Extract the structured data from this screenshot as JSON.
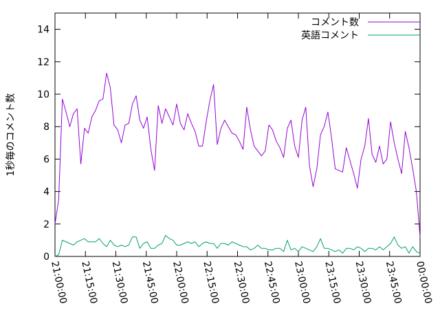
{
  "chart_data": {
    "type": "line",
    "title": "",
    "xlabel": "",
    "ylabel": "1秒毎のコメント数",
    "ylim": [
      0,
      15
    ],
    "yticks": [
      "0",
      "2",
      "4",
      "6",
      "8",
      "10",
      "12",
      "14"
    ],
    "xticks": [
      "21:00:00",
      "21:15:00",
      "21:30:00",
      "21:45:00",
      "22:00:00",
      "22:15:00",
      "22:30:00",
      "22:45:00",
      "23:00:00",
      "23:15:00",
      "23:30:00",
      "23:45:00",
      "00:00:00"
    ],
    "grid": false,
    "legend_position": "top-right",
    "series": [
      {
        "name": "コメント数",
        "color": "#9400d3",
        "values": [
          2.0,
          3.5,
          9.7,
          8.9,
          8.0,
          8.8,
          9.1,
          5.7,
          7.9,
          7.6,
          8.6,
          9.0,
          9.6,
          9.7,
          11.3,
          10.4,
          8.1,
          7.8,
          7.0,
          8.1,
          8.2,
          9.4,
          9.9,
          8.4,
          7.9,
          8.6,
          6.6,
          5.3,
          9.3,
          8.2,
          9.1,
          8.6,
          8.1,
          9.4,
          8.2,
          7.8,
          8.8,
          8.2,
          7.7,
          6.8,
          6.8,
          8.3,
          9.6,
          10.6,
          6.9,
          7.9,
          8.4,
          8.0,
          7.6,
          7.5,
          7.1,
          6.6,
          9.2,
          7.8,
          6.8,
          6.5,
          6.2,
          6.5,
          8.1,
          7.8,
          7.1,
          6.7,
          6.1,
          7.9,
          8.4,
          6.8,
          6.1,
          8.4,
          9.2,
          5.6,
          4.3,
          5.4,
          7.5,
          8.0,
          8.9,
          7.3,
          5.4,
          5.3,
          5.2,
          6.7,
          5.9,
          5.1,
          4.2,
          6.0,
          6.8,
          8.5,
          6.3,
          5.8,
          6.8,
          5.7,
          6.0,
          8.3,
          7.0,
          6.0,
          5.1,
          7.7,
          6.7,
          5.4,
          4.0,
          1.2
        ]
      },
      {
        "name": "英語コメント",
        "color": "#009e73",
        "values": [
          0.0,
          0.1,
          1.0,
          0.9,
          0.8,
          0.7,
          0.9,
          1.0,
          1.1,
          0.9,
          0.9,
          0.9,
          1.1,
          0.8,
          0.6,
          1.0,
          0.7,
          0.6,
          0.7,
          0.6,
          0.7,
          1.2,
          1.2,
          0.5,
          0.8,
          0.9,
          0.5,
          0.5,
          0.7,
          0.8,
          1.3,
          1.1,
          1.0,
          0.7,
          0.7,
          0.8,
          0.9,
          0.8,
          0.9,
          0.6,
          0.8,
          0.9,
          0.8,
          0.8,
          0.5,
          0.8,
          0.8,
          0.7,
          0.9,
          0.8,
          0.7,
          0.6,
          0.6,
          0.4,
          0.5,
          0.7,
          0.5,
          0.5,
          0.4,
          0.4,
          0.5,
          0.5,
          0.3,
          1.0,
          0.4,
          0.5,
          0.3,
          0.6,
          0.5,
          0.4,
          0.3,
          0.6,
          1.1,
          0.5,
          0.5,
          0.4,
          0.3,
          0.4,
          0.2,
          0.5,
          0.5,
          0.4,
          0.6,
          0.5,
          0.3,
          0.5,
          0.5,
          0.4,
          0.6,
          0.4,
          0.6,
          0.8,
          1.2,
          0.7,
          0.5,
          0.6,
          0.2,
          0.6,
          0.3,
          0.2
        ]
      }
    ]
  }
}
